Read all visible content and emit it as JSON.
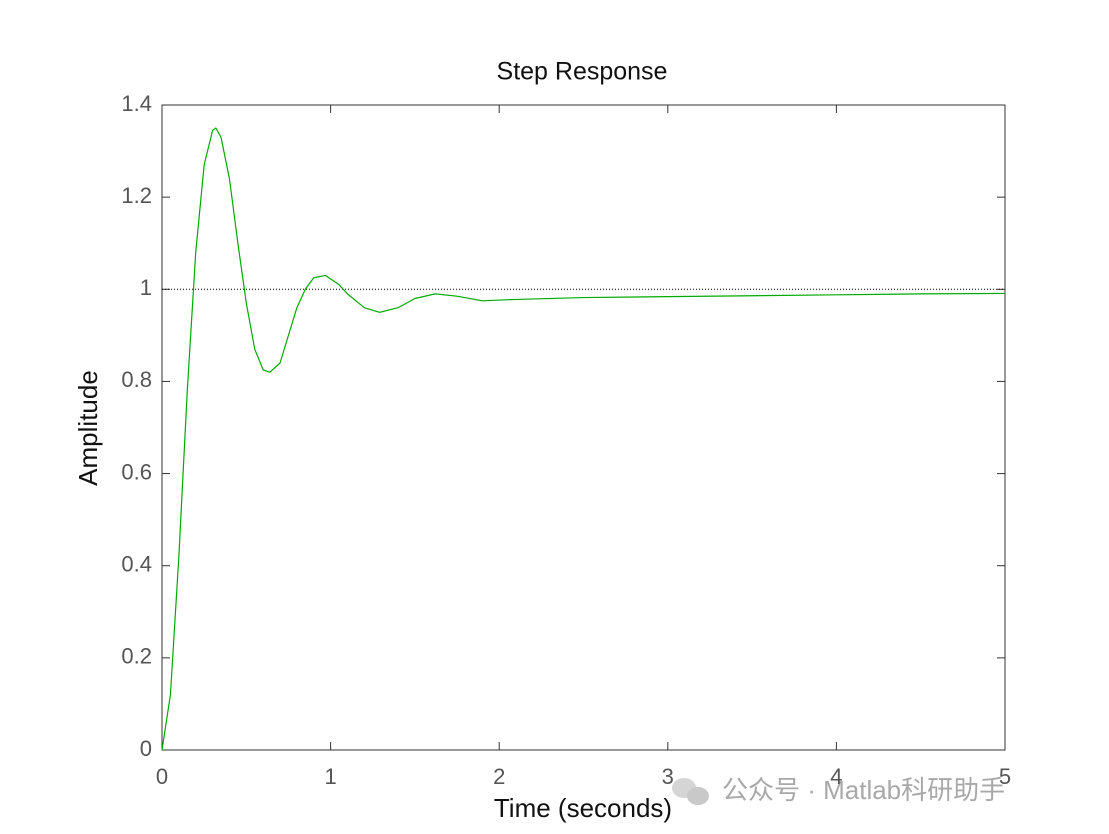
{
  "chart_data": {
    "type": "line",
    "title": "Step Response",
    "x_label": "Time (seconds)",
    "y_label": "Amplitude",
    "x": [
      0,
      0.05,
      0.1,
      0.15,
      0.2,
      0.25,
      0.3,
      0.32,
      0.35,
      0.4,
      0.45,
      0.5,
      0.55,
      0.6,
      0.64,
      0.7,
      0.75,
      0.8,
      0.85,
      0.9,
      0.97,
      1.05,
      1.1,
      1.2,
      1.29,
      1.4,
      1.5,
      1.62,
      1.75,
      1.9,
      2.1,
      2.5,
      3,
      3.5,
      4,
      4.5,
      5
    ],
    "series": [
      {
        "color": "#00aa00",
        "values": [
          0,
          0.12,
          0.42,
          0.78,
          1.08,
          1.27,
          1.345,
          1.35,
          1.33,
          1.24,
          1.1,
          0.97,
          0.87,
          0.825,
          0.82,
          0.84,
          0.9,
          0.96,
          1.0,
          1.025,
          1.03,
          1.01,
          0.99,
          0.96,
          0.95,
          0.96,
          0.98,
          0.99,
          0.985,
          0.975,
          0.978,
          0.982,
          0.984,
          0.986,
          0.988,
          0.99,
          0.991
        ]
      }
    ],
    "reference_y": 1,
    "xlim": [
      0,
      5
    ],
    "xticks": [
      0,
      1,
      2,
      3,
      4,
      5
    ],
    "ylim": [
      0,
      1.4
    ],
    "yticks": [
      0,
      0.2,
      0.4,
      0.6,
      0.8,
      1,
      1.2,
      1.4
    ],
    "watermark": "公众号 · Matlab科研助手"
  }
}
